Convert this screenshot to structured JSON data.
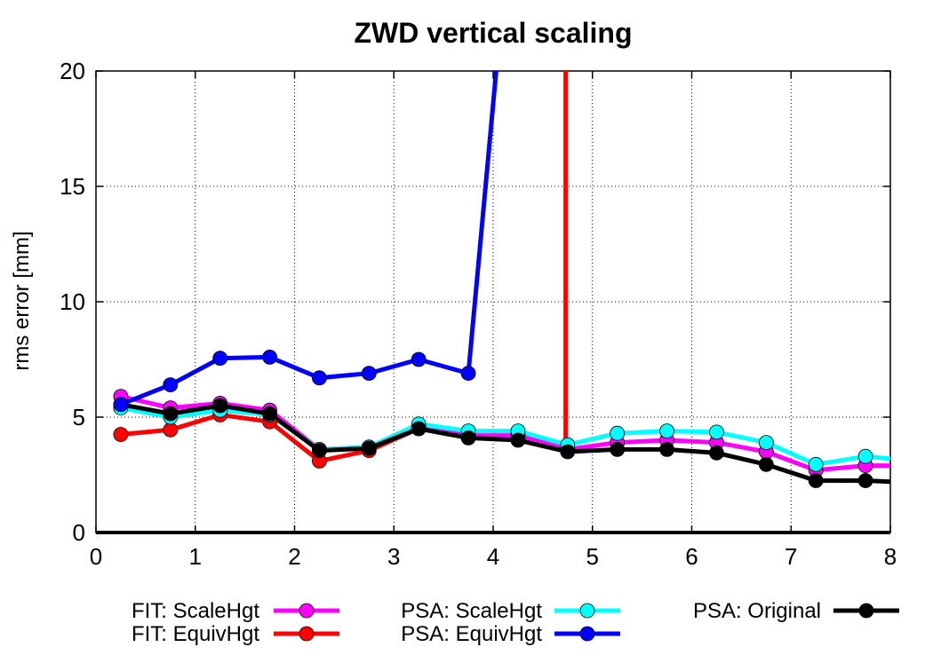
{
  "chart_data": {
    "type": "line",
    "title": "ZWD vertical scaling",
    "xlabel": "",
    "ylabel": "rms error [mm]",
    "xlim": [
      0,
      8
    ],
    "ylim": [
      0,
      20
    ],
    "x_ticks": [
      "0",
      "1",
      "2",
      "3",
      "4",
      "5",
      "6",
      "7",
      "8"
    ],
    "y_ticks": [
      "0",
      "5",
      "10",
      "15",
      "20"
    ],
    "grid": true,
    "legend_position": "bottom",
    "series": [
      {
        "name": "FIT: ScaleHgt",
        "color": "#ff00ff",
        "x": [
          0.25,
          0.75,
          1.25,
          1.75,
          2.25,
          2.75,
          3.25,
          3.75,
          4.25,
          4.75,
          5.25,
          5.75,
          6.25,
          6.75,
          7.25,
          7.75,
          8.0
        ],
        "y": [
          5.9,
          5.4,
          5.6,
          5.3,
          3.6,
          3.7,
          4.6,
          4.2,
          4.2,
          3.6,
          3.9,
          4.0,
          3.9,
          3.5,
          2.7,
          2.9,
          2.9
        ]
      },
      {
        "name": "FIT: EquivHgt",
        "color": "#ff0000",
        "x": [
          0.25,
          0.75,
          1.25,
          1.75,
          2.25,
          2.75,
          3.25,
          3.75,
          4.25,
          4.73,
          4.73,
          4.73
        ],
        "y": [
          4.25,
          4.45,
          5.1,
          4.8,
          3.1,
          3.55,
          4.5,
          4.2,
          4.2,
          3.6,
          12.0,
          20.0
        ]
      },
      {
        "name": "PSA: ScaleHgt",
        "color": "#00ffff",
        "x": [
          0.25,
          0.75,
          1.25,
          1.75,
          2.25,
          2.75,
          3.25,
          3.75,
          4.25,
          4.75,
          5.25,
          5.75,
          6.25,
          6.75,
          7.25,
          7.75,
          8.0
        ],
        "y": [
          5.4,
          5.0,
          5.3,
          5.1,
          3.6,
          3.7,
          4.7,
          4.4,
          4.4,
          3.8,
          4.3,
          4.4,
          4.35,
          3.9,
          2.95,
          3.3,
          3.2
        ]
      },
      {
        "name": "PSA: EquivHgt",
        "color": "#0000ff",
        "x": [
          0.25,
          0.75,
          1.25,
          1.75,
          2.25,
          2.75,
          3.25,
          3.75,
          4.03
        ],
        "y": [
          5.55,
          6.4,
          7.55,
          7.6,
          6.7,
          6.9,
          7.5,
          6.9,
          20.0
        ]
      },
      {
        "name": "PSA: Original",
        "color": "#000000",
        "x": [
          0.25,
          0.75,
          1.25,
          1.75,
          2.25,
          2.75,
          3.25,
          3.75,
          4.25,
          4.75,
          5.25,
          5.75,
          6.25,
          6.75,
          7.25,
          7.75,
          8.0
        ],
        "y": [
          5.55,
          5.15,
          5.5,
          5.15,
          3.55,
          3.65,
          4.5,
          4.1,
          4.0,
          3.5,
          3.6,
          3.6,
          3.45,
          2.95,
          2.25,
          2.25,
          2.2
        ]
      }
    ]
  }
}
